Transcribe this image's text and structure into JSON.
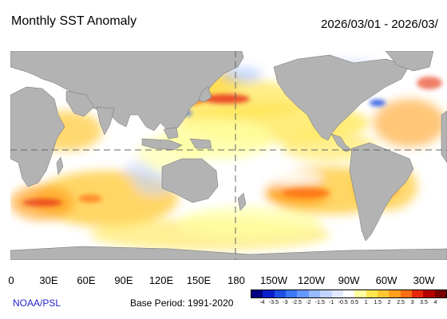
{
  "header": {
    "title": "Monthly SST Anomaly",
    "date_range": "2026/03/01 - 2026/03/"
  },
  "map": {
    "projection": "equirectangular, centered on 180",
    "land_color": "#b3b3b3",
    "ocean_color": "#ffffff",
    "grid_style": "dashed",
    "reference_lines": [
      "Equator",
      "180"
    ],
    "longitude_labels": [
      "0",
      "30E",
      "60E",
      "90E",
      "120E",
      "150E",
      "180",
      "150W",
      "120W",
      "90W",
      "60W",
      "30W"
    ]
  },
  "colorbar": {
    "labels": [
      "-4",
      "-3.5",
      "-3",
      "-2.5",
      "-2",
      "-1.5",
      "-1",
      "-0.5",
      "0.5",
      "1",
      "1.5",
      "2",
      "2.5",
      "3",
      "3.5",
      "4"
    ],
    "colors": [
      "#000080",
      "#0a1ec8",
      "#1e50e6",
      "#3c78ff",
      "#6496ff",
      "#96b9ff",
      "#c3d4ff",
      "#e1e8ff",
      "#ffffff",
      "#ffffa0",
      "#ffe650",
      "#ffc832",
      "#ffa01e",
      "#ff6e14",
      "#e6280a",
      "#b40000",
      "#780000"
    ]
  },
  "footer": {
    "credit": "NOAA/PSL",
    "base_period": "Base Period: 1991-2020"
  }
}
